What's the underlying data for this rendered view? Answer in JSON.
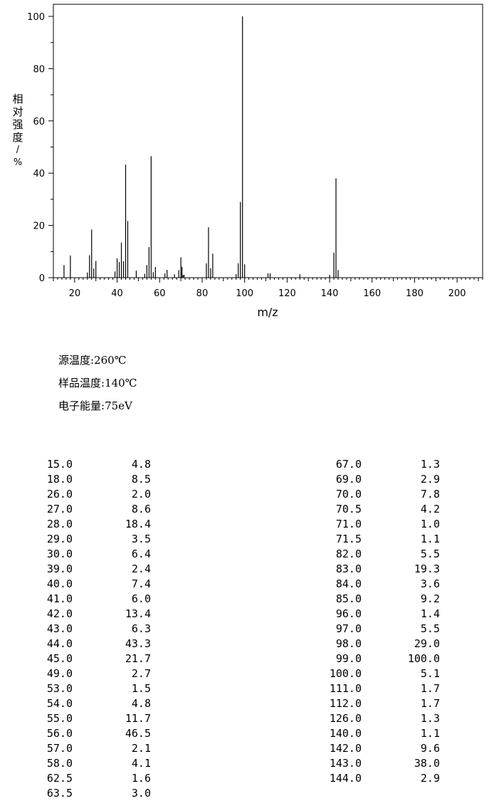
{
  "chart_data": {
    "type": "bar",
    "xlabel": "m/z",
    "ylabel_chars": [
      "相",
      "对",
      "强",
      "度",
      "/",
      "%"
    ],
    "xlim": [
      10,
      212
    ],
    "ylim": [
      0,
      100
    ],
    "xticks": [
      20,
      40,
      60,
      80,
      100,
      120,
      140,
      160,
      180,
      200
    ],
    "yticks": [
      0,
      20,
      40,
      60,
      80,
      100
    ],
    "grid": false,
    "peaks": [
      {
        "mz": 15.0,
        "ab": 4.8
      },
      {
        "mz": 18.0,
        "ab": 8.5
      },
      {
        "mz": 26.0,
        "ab": 2.0
      },
      {
        "mz": 27.0,
        "ab": 8.6
      },
      {
        "mz": 28.0,
        "ab": 18.4
      },
      {
        "mz": 29.0,
        "ab": 3.5
      },
      {
        "mz": 30.0,
        "ab": 6.4
      },
      {
        "mz": 39.0,
        "ab": 2.4
      },
      {
        "mz": 40.0,
        "ab": 7.4
      },
      {
        "mz": 41.0,
        "ab": 6.0
      },
      {
        "mz": 42.0,
        "ab": 13.4
      },
      {
        "mz": 43.0,
        "ab": 6.3
      },
      {
        "mz": 44.0,
        "ab": 43.3
      },
      {
        "mz": 45.0,
        "ab": 21.7
      },
      {
        "mz": 49.0,
        "ab": 2.7
      },
      {
        "mz": 53.0,
        "ab": 1.5
      },
      {
        "mz": 54.0,
        "ab": 4.8
      },
      {
        "mz": 55.0,
        "ab": 11.7
      },
      {
        "mz": 56.0,
        "ab": 46.5
      },
      {
        "mz": 57.0,
        "ab": 2.1
      },
      {
        "mz": 58.0,
        "ab": 4.1
      },
      {
        "mz": 62.5,
        "ab": 1.6
      },
      {
        "mz": 63.5,
        "ab": 3.0
      },
      {
        "mz": 67.0,
        "ab": 1.3
      },
      {
        "mz": 69.0,
        "ab": 2.9
      },
      {
        "mz": 70.0,
        "ab": 7.8
      },
      {
        "mz": 70.5,
        "ab": 4.2
      },
      {
        "mz": 71.0,
        "ab": 1.0
      },
      {
        "mz": 71.5,
        "ab": 1.1
      },
      {
        "mz": 82.0,
        "ab": 5.5
      },
      {
        "mz": 83.0,
        "ab": 19.3
      },
      {
        "mz": 84.0,
        "ab": 3.6
      },
      {
        "mz": 85.0,
        "ab": 9.2
      },
      {
        "mz": 96.0,
        "ab": 1.4
      },
      {
        "mz": 97.0,
        "ab": 5.5
      },
      {
        "mz": 98.0,
        "ab": 29.0
      },
      {
        "mz": 99.0,
        "ab": 100.0
      },
      {
        "mz": 100.0,
        "ab": 5.1
      },
      {
        "mz": 111.0,
        "ab": 1.7
      },
      {
        "mz": 112.0,
        "ab": 1.7
      },
      {
        "mz": 126.0,
        "ab": 1.3
      },
      {
        "mz": 140.0,
        "ab": 1.1
      },
      {
        "mz": 142.0,
        "ab": 9.6
      },
      {
        "mz": 143.0,
        "ab": 38.0
      },
      {
        "mz": 144.0,
        "ab": 2.9
      }
    ]
  },
  "conditions": [
    {
      "label": "源温度:",
      "value": "260℃"
    },
    {
      "label": "样品温度:",
      "value": "140℃"
    },
    {
      "label": "电子能量:",
      "value": "75eV"
    }
  ],
  "table": {
    "left": [
      {
        "mz": "15.0",
        "ab": "4.8"
      },
      {
        "mz": "18.0",
        "ab": "8.5"
      },
      {
        "mz": "26.0",
        "ab": "2.0"
      },
      {
        "mz": "27.0",
        "ab": "8.6"
      },
      {
        "mz": "28.0",
        "ab": "18.4"
      },
      {
        "mz": "29.0",
        "ab": "3.5"
      },
      {
        "mz": "30.0",
        "ab": "6.4"
      },
      {
        "mz": "39.0",
        "ab": "2.4"
      },
      {
        "mz": "40.0",
        "ab": "7.4"
      },
      {
        "mz": "41.0",
        "ab": "6.0"
      },
      {
        "mz": "42.0",
        "ab": "13.4"
      },
      {
        "mz": "43.0",
        "ab": "6.3"
      },
      {
        "mz": "44.0",
        "ab": "43.3"
      },
      {
        "mz": "45.0",
        "ab": "21.7"
      },
      {
        "mz": "49.0",
        "ab": "2.7"
      },
      {
        "mz": "53.0",
        "ab": "1.5"
      },
      {
        "mz": "54.0",
        "ab": "4.8"
      },
      {
        "mz": "55.0",
        "ab": "11.7"
      },
      {
        "mz": "56.0",
        "ab": "46.5"
      },
      {
        "mz": "57.0",
        "ab": "2.1"
      },
      {
        "mz": "58.0",
        "ab": "4.1"
      },
      {
        "mz": "62.5",
        "ab": "1.6"
      },
      {
        "mz": "63.5",
        "ab": "3.0"
      }
    ],
    "right": [
      {
        "mz": "67.0",
        "ab": "1.3"
      },
      {
        "mz": "69.0",
        "ab": "2.9"
      },
      {
        "mz": "70.0",
        "ab": "7.8"
      },
      {
        "mz": "70.5",
        "ab": "4.2"
      },
      {
        "mz": "71.0",
        "ab": "1.0"
      },
      {
        "mz": "71.5",
        "ab": "1.1"
      },
      {
        "mz": "82.0",
        "ab": "5.5"
      },
      {
        "mz": "83.0",
        "ab": "19.3"
      },
      {
        "mz": "84.0",
        "ab": "3.6"
      },
      {
        "mz": "85.0",
        "ab": "9.2"
      },
      {
        "mz": "96.0",
        "ab": "1.4"
      },
      {
        "mz": "97.0",
        "ab": "5.5"
      },
      {
        "mz": "98.0",
        "ab": "29.0"
      },
      {
        "mz": "99.0",
        "ab": "100.0"
      },
      {
        "mz": "100.0",
        "ab": "5.1"
      },
      {
        "mz": "111.0",
        "ab": "1.7"
      },
      {
        "mz": "112.0",
        "ab": "1.7"
      },
      {
        "mz": "126.0",
        "ab": "1.3"
      },
      {
        "mz": "140.0",
        "ab": "1.1"
      },
      {
        "mz": "142.0",
        "ab": "9.6"
      },
      {
        "mz": "143.0",
        "ab": "38.0"
      },
      {
        "mz": "144.0",
        "ab": "2.9"
      }
    ]
  }
}
